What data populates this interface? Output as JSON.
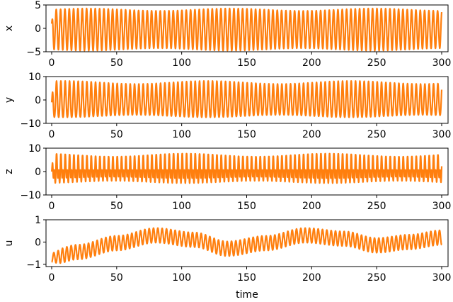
{
  "chart_data": {
    "type": "line",
    "layout": "4 stacked subplots sharing time axis",
    "xlabel": "time",
    "x_range": [
      0,
      300
    ],
    "x_ticks": [
      0,
      50,
      100,
      150,
      200,
      250,
      300
    ],
    "grid": false,
    "legend": null,
    "line_color": "#ff7f0e",
    "panels": [
      {
        "ylabel": "x",
        "y_ticks": [
          -5,
          0,
          5
        ],
        "ylim": [
          -5,
          5
        ],
        "description": "fast oscillation, ~90 cycles over 0-300",
        "start_value": 1,
        "approx_min": -4.5,
        "approx_max": 4.0,
        "cycles": 90,
        "offset_trend": 0.0,
        "amp_mod": 0.06
      },
      {
        "ylabel": "y",
        "y_ticks": [
          -10,
          0,
          10
        ],
        "ylim": [
          -10,
          10
        ],
        "description": "fast oscillation, ~90 cycles, slightly skewed peaks",
        "start_value": -1,
        "approx_min": -8.5,
        "approx_max": 7.5,
        "cycles": 90,
        "offset_trend": 0.0,
        "amp_mod": 0.08
      },
      {
        "ylabel": "z",
        "y_ticks": [
          -10,
          0,
          10
        ],
        "ylim": [
          -10,
          10
        ],
        "description": "dense high-frequency oscillation with double-peak structure",
        "start_value": 0,
        "approx_min": -6,
        "approx_max": 7,
        "cycles": 180,
        "offset_trend": 0.0,
        "amp_mod": 0.1
      },
      {
        "ylabel": "u",
        "y_ticks": [
          -1,
          0,
          1
        ],
        "ylim": [
          -1.1,
          1.0
        ],
        "description": "oscillation riding on slow wave; center rises to ~0.3 near t=80, dips to ~-0.3 near t=135, rises to ~0.3 near t=195, dips ~-0.2 near t=250",
        "start_value": -1,
        "approx_min": -1.0,
        "approx_max": 0.65,
        "cycles": 90,
        "osc_amplitude": 0.33,
        "slow_wave": [
          [
            0,
            -0.7
          ],
          [
            20,
            -0.45
          ],
          [
            50,
            -0.05
          ],
          [
            80,
            0.3
          ],
          [
            110,
            0.1
          ],
          [
            135,
            -0.3
          ],
          [
            165,
            -0.05
          ],
          [
            195,
            0.3
          ],
          [
            225,
            0.15
          ],
          [
            250,
            -0.15
          ],
          [
            275,
            0.0
          ],
          [
            300,
            0.2
          ]
        ]
      }
    ]
  }
}
